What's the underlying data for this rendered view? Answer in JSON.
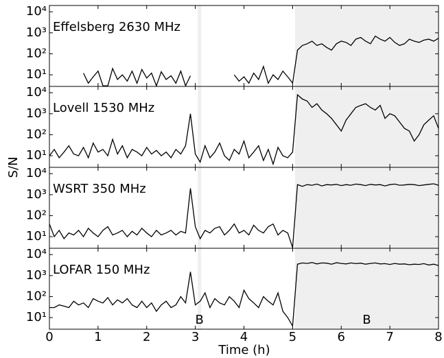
{
  "chart_data": {
    "type": "line",
    "xlabel": "Time (h)",
    "ylabel": "S/N",
    "log_y": true,
    "xlim": [
      0,
      8
    ],
    "xticks": [
      0,
      1,
      2,
      3,
      4,
      5,
      6,
      7,
      8
    ],
    "ylim": [
      2.8,
      20000
    ],
    "yticks": [
      {
        "value": 10,
        "label": "10¹"
      },
      {
        "value": 100,
        "label": "10²"
      },
      {
        "value": 1000,
        "label": "10³"
      },
      {
        "value": 10000,
        "label": "10⁴"
      }
    ],
    "shaded_regions": [
      [
        3.05,
        3.12
      ],
      [
        5.05,
        8
      ]
    ],
    "shade_color": "#efefef",
    "region_labels": [
      "B",
      "B"
    ],
    "x": [
      0,
      0.1,
      0.2,
      0.3,
      0.4,
      0.5,
      0.6,
      0.7,
      0.8,
      0.9,
      1,
      1.1,
      1.2,
      1.3,
      1.4,
      1.5,
      1.6,
      1.7,
      1.8,
      1.9,
      2,
      2.1,
      2.2,
      2.3,
      2.4,
      2.5,
      2.6,
      2.7,
      2.8,
      2.9,
      3,
      3.1,
      3.2,
      3.3,
      3.4,
      3.5,
      3.6,
      3.7,
      3.8,
      3.9,
      4,
      4.1,
      4.2,
      4.3,
      4.4,
      4.5,
      4.6,
      4.7,
      4.8,
      4.9,
      5,
      5.1,
      5.2,
      5.3,
      5.4,
      5.5,
      5.6,
      5.7,
      5.8,
      5.9,
      6,
      6.1,
      6.2,
      6.3,
      6.4,
      6.5,
      6.6,
      6.7,
      6.8,
      6.9,
      7,
      7.1,
      7.2,
      7.3,
      7.4,
      7.5,
      7.6,
      7.7,
      7.8,
      7.9,
      8
    ],
    "series": [
      {
        "name": "Effelsberg 2630 MHz",
        "color": "#000000",
        "values": [
          null,
          null,
          null,
          null,
          null,
          null,
          null,
          12,
          4,
          8,
          15,
          3,
          3,
          20,
          6,
          10,
          5,
          15,
          4,
          18,
          7,
          12,
          3,
          14,
          6,
          9,
          4,
          15,
          3,
          9,
          null,
          null,
          null,
          null,
          null,
          null,
          null,
          null,
          10,
          5,
          8,
          4,
          12,
          6,
          25,
          4,
          10,
          6,
          15,
          8,
          4,
          150,
          250,
          300,
          400,
          250,
          300,
          200,
          150,
          300,
          400,
          350,
          250,
          500,
          600,
          400,
          300,
          700,
          500,
          400,
          600,
          350,
          250,
          300,
          500,
          400,
          350,
          450,
          500,
          400,
          550
        ]
      },
      {
        "name": "Lovell 1530 MHz",
        "color": "#000000",
        "values": [
          10,
          20,
          8,
          15,
          30,
          12,
          10,
          25,
          8,
          40,
          15,
          20,
          10,
          60,
          12,
          30,
          8,
          20,
          15,
          10,
          25,
          12,
          18,
          10,
          15,
          8,
          20,
          12,
          30,
          1000,
          12,
          5,
          30,
          8,
          15,
          40,
          10,
          6,
          20,
          12,
          50,
          8,
          15,
          30,
          6,
          20,
          4,
          25,
          10,
          8,
          15,
          8000,
          5000,
          4000,
          2000,
          3000,
          1500,
          1000,
          600,
          300,
          150,
          500,
          1000,
          2000,
          2500,
          3000,
          2000,
          1500,
          2500,
          600,
          1000,
          800,
          400,
          200,
          150,
          50,
          100,
          300,
          500,
          800,
          200
        ]
      },
      {
        "name": "WSRT 350 MHz",
        "color": "#000000",
        "values": [
          40,
          10,
          20,
          8,
          15,
          12,
          20,
          10,
          25,
          15,
          10,
          20,
          30,
          12,
          15,
          20,
          10,
          18,
          12,
          25,
          15,
          10,
          20,
          12,
          15,
          20,
          12,
          18,
          15,
          2000,
          30,
          8,
          20,
          15,
          25,
          30,
          12,
          20,
          40,
          15,
          20,
          12,
          35,
          20,
          15,
          30,
          40,
          12,
          20,
          15,
          3,
          3000,
          2500,
          3000,
          2800,
          3200,
          2600,
          3000,
          2900,
          3100,
          2700,
          3000,
          2800,
          3200,
          3000,
          2700,
          3100,
          2900,
          3000,
          2600,
          3000,
          3200,
          2800,
          2900,
          3100,
          3000,
          2700,
          2900,
          3100,
          3300,
          2800
        ]
      },
      {
        "name": "LOFAR 150 MHz",
        "color": "#000000",
        "values": [
          30,
          30,
          40,
          35,
          30,
          60,
          40,
          50,
          30,
          80,
          60,
          50,
          90,
          40,
          70,
          50,
          80,
          40,
          30,
          60,
          30,
          50,
          20,
          40,
          60,
          30,
          40,
          100,
          50,
          1500,
          40,
          60,
          150,
          30,
          80,
          50,
          40,
          100,
          60,
          30,
          200,
          80,
          50,
          30,
          100,
          60,
          40,
          150,
          20,
          10,
          4,
          3500,
          4000,
          3800,
          4200,
          3600,
          4000,
          3900,
          3500,
          4100,
          3800,
          3600,
          4000,
          3700,
          3900,
          3500,
          3800,
          4000,
          3600,
          3700,
          3400,
          3800,
          3500,
          3600,
          3300,
          3500,
          3400,
          3700,
          3200,
          3500,
          3000
        ]
      }
    ]
  }
}
